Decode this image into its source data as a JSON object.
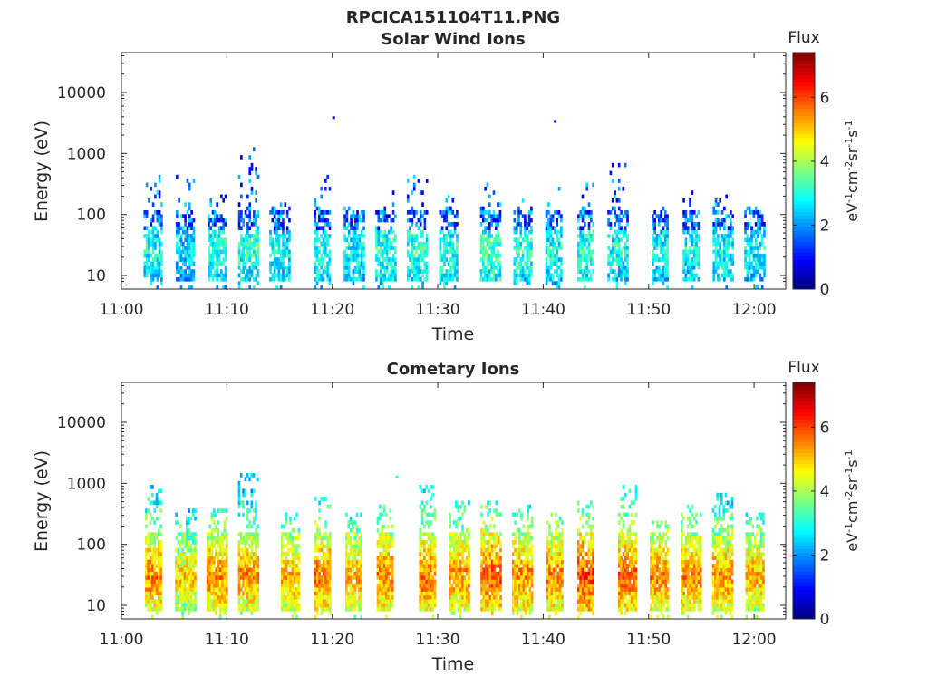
{
  "figure": {
    "title": "RPCICA151104T11.PNG"
  },
  "chart_data": [
    {
      "type": "heatmap",
      "title": "Solar Wind Ions",
      "xlabel": "Time",
      "ylabel": "Energy (eV)",
      "yscale": "log",
      "xlim": [
        "11:00",
        "12:03"
      ],
      "ylim": [
        6,
        45000
      ],
      "xticks": [
        "11:00",
        "11:10",
        "11:20",
        "11:30",
        "11:40",
        "11:50",
        "12:00"
      ],
      "yticks": [
        "10",
        "100",
        "1000",
        "10000"
      ],
      "colorbar": {
        "title": "Flux",
        "label": "eV-1cm-2sr-1s-1",
        "range": [
          0,
          7.4
        ],
        "ticks": [
          "0",
          "2",
          "4",
          "6"
        ],
        "colormap": "jet"
      },
      "bursts": [
        {
          "time": "11:03",
          "peak_flux": 3.6,
          "max_energy_eV": 420
        },
        {
          "time": "11:06",
          "peak_flux": 3.3,
          "max_energy_eV": 450
        },
        {
          "time": "11:09",
          "peak_flux": 3.8,
          "max_energy_eV": 220
        },
        {
          "time": "11:12",
          "peak_flux": 3.8,
          "max_energy_eV": 1300
        },
        {
          "time": "11:15",
          "peak_flux": 3.6,
          "max_energy_eV": 150
        },
        {
          "time": "11:19",
          "peak_flux": 3.8,
          "max_energy_eV": 450
        },
        {
          "time": "11:22",
          "peak_flux": 3.6,
          "max_energy_eV": 130
        },
        {
          "time": "11:25",
          "peak_flux": 3.8,
          "max_energy_eV": 280
        },
        {
          "time": "11:28",
          "peak_flux": 3.9,
          "max_energy_eV": 450
        },
        {
          "time": "11:31",
          "peak_flux": 3.8,
          "max_energy_eV": 200
        },
        {
          "time": "11:35",
          "peak_flux": 4.0,
          "max_energy_eV": 350
        },
        {
          "time": "11:38",
          "peak_flux": 3.8,
          "max_energy_eV": 210
        },
        {
          "time": "11:41",
          "peak_flux": 3.7,
          "max_energy_eV": 330
        },
        {
          "time": "11:44",
          "peak_flux": 3.9,
          "max_energy_eV": 340
        },
        {
          "time": "11:47",
          "peak_flux": 3.7,
          "max_energy_eV": 750
        },
        {
          "time": "11:51",
          "peak_flux": 3.6,
          "max_energy_eV": 130
        },
        {
          "time": "11:54",
          "peak_flux": 3.6,
          "max_energy_eV": 250
        },
        {
          "time": "11:57",
          "peak_flux": 3.6,
          "max_energy_eV": 200
        },
        {
          "time": "12:00",
          "peak_flux": 3.5,
          "max_energy_eV": 150
        }
      ],
      "isolated_points": [
        {
          "time": "11:20",
          "energy_eV": 3800,
          "flux": 0.8
        },
        {
          "time": "11:41",
          "energy_eV": 3300,
          "flux": 0.8
        }
      ]
    },
    {
      "type": "heatmap",
      "title": "Cometary Ions",
      "xlabel": "Time",
      "ylabel": "Energy (eV)",
      "yscale": "log",
      "xlim": [
        "11:00",
        "12:03"
      ],
      "ylim": [
        6,
        45000
      ],
      "xticks": [
        "11:00",
        "11:10",
        "11:20",
        "11:30",
        "11:40",
        "11:50",
        "12:00"
      ],
      "yticks": [
        "10",
        "100",
        "1000",
        "10000"
      ],
      "colorbar": {
        "title": "Flux",
        "label": "eV-1cm-2sr-1s-1",
        "range": [
          0,
          7.4
        ],
        "ticks": [
          "0",
          "2",
          "4",
          "6"
        ],
        "colormap": "jet"
      },
      "bursts": [
        {
          "time": "11:03",
          "peak_flux": 6.3,
          "max_energy_eV": 1100
        },
        {
          "time": "11:06",
          "peak_flux": 5.7,
          "max_energy_eV": 400
        },
        {
          "time": "11:09",
          "peak_flux": 6.3,
          "max_energy_eV": 400
        },
        {
          "time": "11:12",
          "peak_flux": 6.2,
          "max_energy_eV": 1400
        },
        {
          "time": "11:16",
          "peak_flux": 6.0,
          "max_energy_eV": 330
        },
        {
          "time": "11:19",
          "peak_flux": 6.4,
          "max_energy_eV": 600
        },
        {
          "time": "11:22",
          "peak_flux": 6.0,
          "max_energy_eV": 400
        },
        {
          "time": "11:25",
          "peak_flux": 6.3,
          "max_energy_eV": 500
        },
        {
          "time": "11:29",
          "peak_flux": 6.4,
          "max_energy_eV": 950
        },
        {
          "time": "11:32",
          "peak_flux": 6.2,
          "max_energy_eV": 500
        },
        {
          "time": "11:35",
          "peak_flux": 6.6,
          "max_energy_eV": 500
        },
        {
          "time": "11:38",
          "peak_flux": 6.3,
          "max_energy_eV": 450
        },
        {
          "time": "11:41",
          "peak_flux": 6.3,
          "max_energy_eV": 400
        },
        {
          "time": "11:44",
          "peak_flux": 6.8,
          "max_energy_eV": 500
        },
        {
          "time": "11:48",
          "peak_flux": 6.5,
          "max_energy_eV": 900
        },
        {
          "time": "11:51",
          "peak_flux": 6.3,
          "max_energy_eV": 250
        },
        {
          "time": "11:54",
          "peak_flux": 6.3,
          "max_energy_eV": 450
        },
        {
          "time": "11:57",
          "peak_flux": 6.2,
          "max_energy_eV": 650
        },
        {
          "time": "12:00",
          "peak_flux": 6.0,
          "max_energy_eV": 350
        }
      ],
      "isolated_points": [
        {
          "time": "11:26",
          "energy_eV": 1250,
          "flux": 3.0
        }
      ]
    }
  ]
}
